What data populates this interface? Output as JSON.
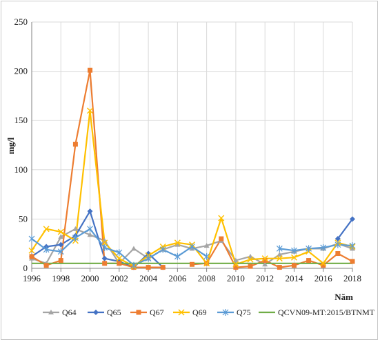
{
  "chart_data": {
    "type": "line",
    "title": "",
    "xlabel": "Năm",
    "ylabel": "mg/l",
    "xlim": [
      1996,
      2018
    ],
    "ylim": [
      0,
      250
    ],
    "x_ticks": [
      1996,
      1998,
      2000,
      2002,
      2004,
      2006,
      2008,
      2010,
      2012,
      2014,
      2016,
      2018
    ],
    "y_ticks": [
      0,
      50,
      100,
      150,
      200,
      250
    ],
    "grid": true,
    "legend_position": "bottom",
    "series": [
      {
        "name": "Q64",
        "color": "#a5a5a5",
        "marker": "triangle",
        "points": [
          [
            1996,
            10
          ],
          [
            1997,
            5
          ],
          [
            1998,
            32
          ],
          [
            1999,
            40
          ],
          [
            2000,
            34
          ],
          [
            2001,
            28
          ],
          [
            2002,
            5
          ],
          [
            2003,
            20
          ],
          [
            2004,
            10
          ],
          [
            2005,
            19
          ],
          [
            2006,
            24
          ],
          [
            2007,
            20
          ],
          [
            2008,
            23
          ],
          [
            2009,
            28
          ],
          [
            2010,
            8
          ],
          [
            2011,
            12
          ],
          [
            2012,
            4
          ],
          [
            2013,
            14
          ],
          [
            2014,
            17
          ],
          [
            2015,
            20
          ],
          [
            2016,
            20
          ],
          [
            2017,
            25
          ],
          [
            2018,
            20
          ]
        ]
      },
      {
        "name": "Q65",
        "color": "#4472c4",
        "marker": "diamond",
        "points": [
          [
            1996,
            12
          ],
          [
            1997,
            22
          ],
          [
            1998,
            24
          ],
          [
            1999,
            33
          ],
          [
            2000,
            58
          ],
          [
            2001,
            10
          ],
          [
            2002,
            7
          ],
          [
            2003,
            1
          ],
          [
            2004,
            15
          ],
          [
            2005,
            1
          ],
          [
            null,
            null
          ],
          [
            2017,
            30
          ],
          [
            2018,
            50
          ]
        ]
      },
      {
        "name": "Q67",
        "color": "#ed7d31",
        "marker": "square",
        "points": [
          [
            1996,
            12
          ],
          [
            1997,
            3
          ],
          [
            1998,
            8
          ],
          [
            1999,
            126
          ],
          [
            2000,
            201
          ],
          [
            2001,
            5
          ],
          [
            2002,
            5
          ],
          [
            2003,
            1
          ],
          [
            2004,
            1
          ],
          [
            2005,
            1
          ],
          [
            null,
            null
          ],
          [
            2007,
            4
          ],
          [
            2008,
            5
          ],
          [
            2009,
            30
          ],
          [
            2010,
            1
          ],
          [
            2011,
            2
          ],
          [
            2012,
            8
          ],
          [
            2013,
            1
          ],
          [
            2014,
            3
          ],
          [
            2015,
            8
          ],
          [
            2016,
            3
          ],
          [
            2017,
            15
          ],
          [
            2018,
            7
          ]
        ]
      },
      {
        "name": "Q69",
        "color": "#ffc000",
        "marker": "x",
        "points": [
          [
            1996,
            18
          ],
          [
            1997,
            40
          ],
          [
            1998,
            37
          ],
          [
            1999,
            28
          ],
          [
            2000,
            160
          ],
          [
            2001,
            26
          ],
          [
            2002,
            10
          ],
          [
            2003,
            2
          ],
          [
            2004,
            13
          ],
          [
            2005,
            22
          ],
          [
            2006,
            26
          ],
          [
            2007,
            24
          ],
          [
            2008,
            5
          ],
          [
            2009,
            51
          ],
          [
            2010,
            4
          ],
          [
            2011,
            9
          ],
          [
            2012,
            10
          ],
          [
            2013,
            10
          ],
          [
            2014,
            11
          ],
          [
            2015,
            17
          ],
          [
            2016,
            5
          ],
          [
            2017,
            26
          ],
          [
            2018,
            22
          ]
        ]
      },
      {
        "name": "Q75",
        "color": "#5b9bd5",
        "marker": "star",
        "points": [
          [
            1996,
            30
          ],
          [
            1997,
            19
          ],
          [
            1998,
            17
          ],
          [
            1999,
            31
          ],
          [
            2000,
            40
          ],
          [
            2001,
            21
          ],
          [
            2002,
            16
          ],
          [
            2003,
            3
          ],
          [
            2004,
            10
          ],
          [
            2005,
            19
          ],
          [
            2006,
            12
          ],
          [
            2007,
            22
          ],
          [
            2008,
            12
          ],
          [
            null,
            null
          ],
          [
            2013,
            20
          ],
          [
            2014,
            18
          ],
          [
            2015,
            20
          ],
          [
            2016,
            21
          ],
          [
            2017,
            24
          ],
          [
            2018,
            23
          ]
        ]
      },
      {
        "name": "QCVN09-MT:2015/BTNMT",
        "color": "#70ad47",
        "marker": "none",
        "points": [
          [
            1996,
            5
          ],
          [
            2018,
            5
          ]
        ]
      }
    ]
  }
}
